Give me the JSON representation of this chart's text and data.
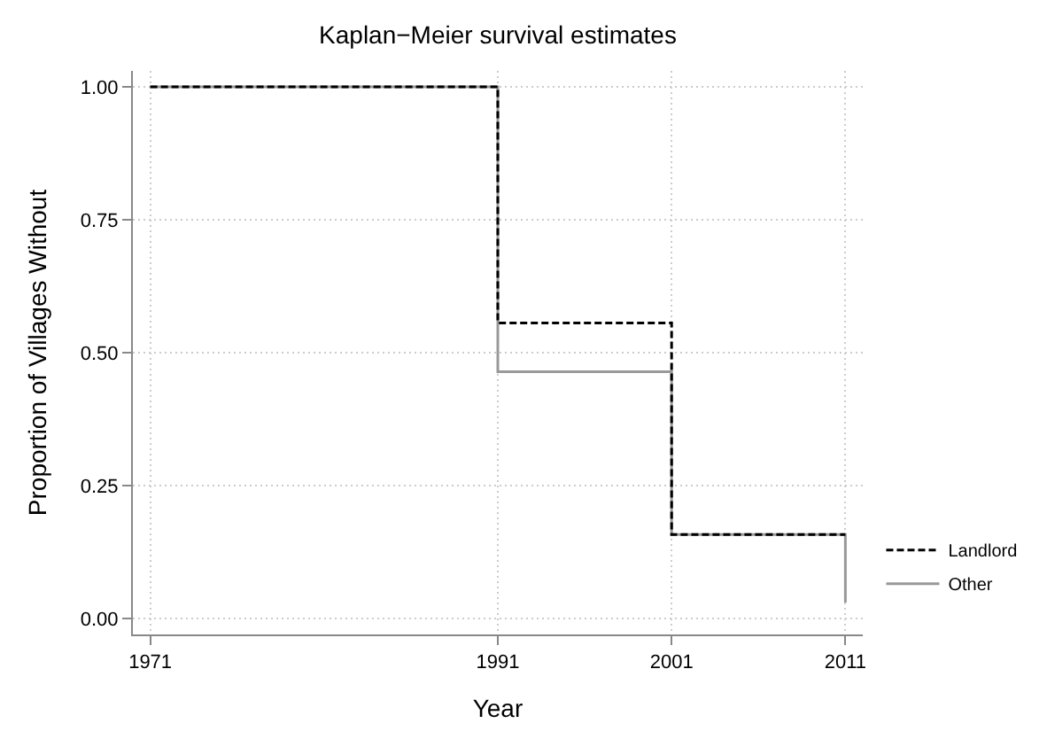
{
  "chart_data": {
    "type": "step",
    "title": "Kaplan−Meier survival estimates",
    "xlabel": "Year",
    "ylabel": "Proportion of Villages Without",
    "series": [
      {
        "name": "Landlord",
        "color": "#000000",
        "line_style": "dashed",
        "x": [
          1971,
          1991,
          2001,
          2011
        ],
        "values": [
          1.0,
          0.556,
          0.158,
          0.158
        ]
      },
      {
        "name": "Other",
        "color": "#999999",
        "line_style": "solid",
        "x": [
          1971,
          1991,
          2001,
          2011
        ],
        "values": [
          1.0,
          0.464,
          0.158,
          0.03
        ]
      }
    ],
    "xlim": [
      1970,
      2012
    ],
    "xticks": [
      1971,
      1991,
      2001,
      2011
    ],
    "ylim": [
      -0.03,
      1.03
    ],
    "yticks": [
      {
        "value": 0,
        "label": "0.00"
      },
      {
        "value": 0.25,
        "label": "0.25"
      },
      {
        "value": 0.5,
        "label": "0.50"
      },
      {
        "value": 0.75,
        "label": "0.75"
      },
      {
        "value": 1,
        "label": "1.00"
      }
    ],
    "grid": true,
    "legend": "right"
  }
}
